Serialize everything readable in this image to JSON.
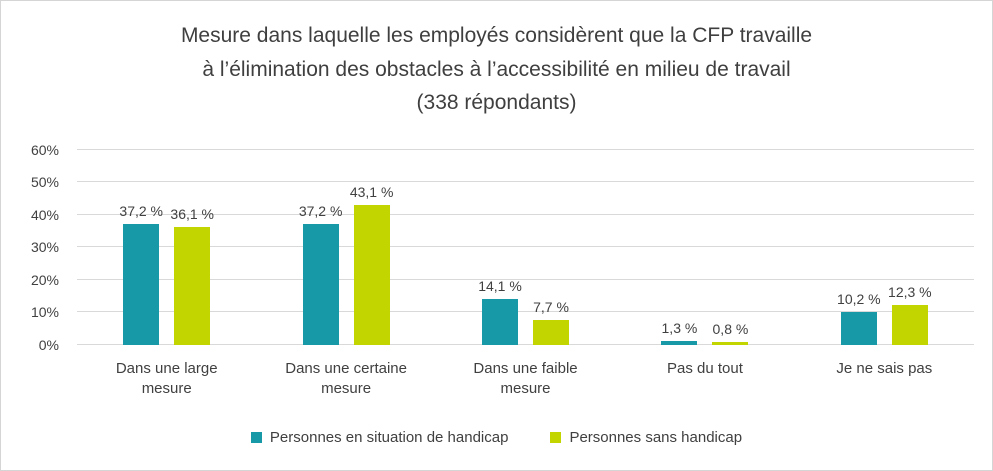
{
  "chart_data": {
    "type": "bar",
    "title": "Mesure dans laquelle les employés considèrent que la CFP travaille\nà l’élimination des obstacles à l’accessibilité en milieu de travail\n(338 répondants)",
    "categories": [
      "Dans une large mesure",
      "Dans une certaine mesure",
      "Dans une faible mesure",
      "Pas du tout",
      "Je ne sais pas"
    ],
    "series": [
      {
        "name": "Personnes en situation de handicap",
        "color": "#1899A8",
        "values": [
          37.2,
          37.2,
          14.1,
          1.3,
          10.2
        ],
        "labels": [
          "37,2 %",
          "37,2 %",
          "14,1 %",
          "1,3 %",
          "10,2 %"
        ]
      },
      {
        "name": "Personnes sans handicap",
        "color": "#C3D500",
        "values": [
          36.1,
          43.1,
          7.7,
          0.8,
          12.3
        ],
        "labels": [
          "36,1 %",
          "43,1 %",
          "7,7 %",
          "0,8 %",
          "12,3 %"
        ]
      }
    ],
    "xlabel": "",
    "ylabel": "",
    "ylim": [
      0,
      60
    ],
    "y_tick_step": 10,
    "y_tick_labels": [
      "0%",
      "10%",
      "20%",
      "30%",
      "40%",
      "50%",
      "60%"
    ],
    "grid": true,
    "legend_position": "bottom"
  }
}
